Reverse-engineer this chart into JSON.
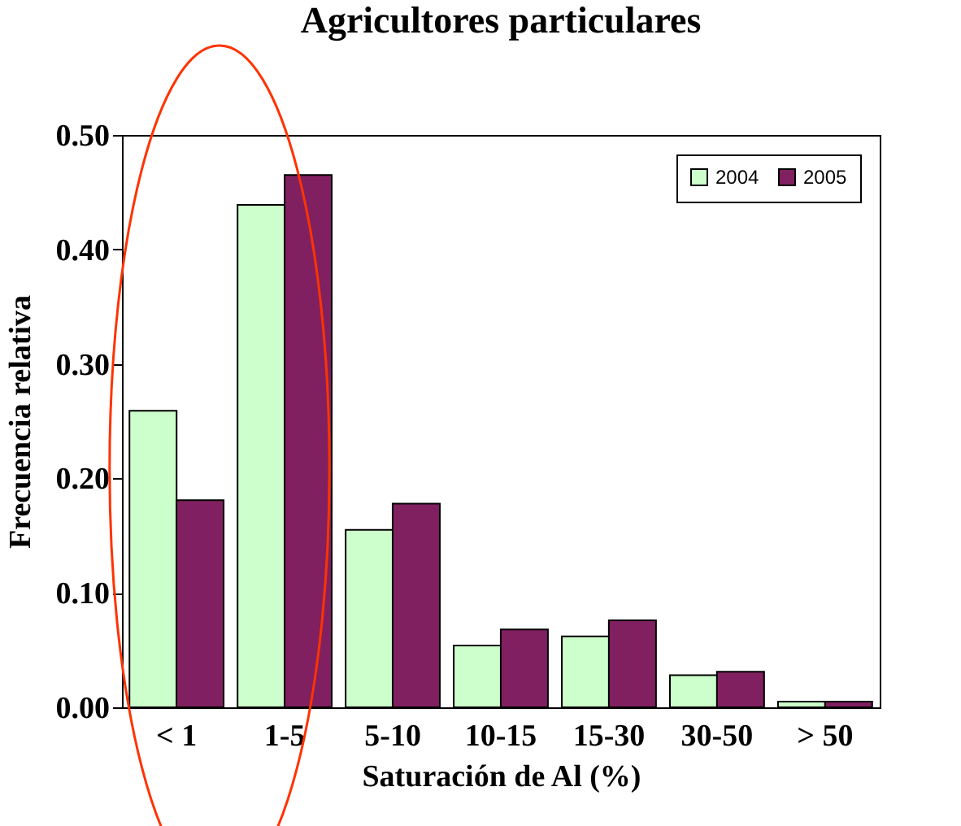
{
  "chart_data": {
    "type": "bar",
    "title": "Agricultores particulares",
    "xlabel": "Saturación de Al (%)",
    "ylabel": "Frecuencia relativa",
    "categories": [
      "< 1",
      "1-5",
      "5-10",
      "10-15",
      "15-30",
      "30-50",
      "> 50"
    ],
    "series": [
      {
        "name": "2004",
        "color": "#ccffcc",
        "values": [
          0.259,
          0.439,
          0.155,
          0.054,
          0.062,
          0.028,
          0.005
        ]
      },
      {
        "name": "2005",
        "color": "#802060",
        "values": [
          0.181,
          0.465,
          0.178,
          0.068,
          0.076,
          0.031,
          0.005
        ]
      }
    ],
    "ylim": [
      0,
      0.5
    ],
    "yticks": [
      {
        "value": 0,
        "label": "0.00"
      },
      {
        "value": 0.1,
        "label": "0.10"
      },
      {
        "value": 0.2,
        "label": "0.20"
      },
      {
        "value": 0.3,
        "label": "0.30"
      },
      {
        "value": 0.4,
        "label": "0.40"
      },
      {
        "value": 0.5,
        "label": "0.50"
      }
    ],
    "grid": false,
    "legend": "top right"
  }
}
